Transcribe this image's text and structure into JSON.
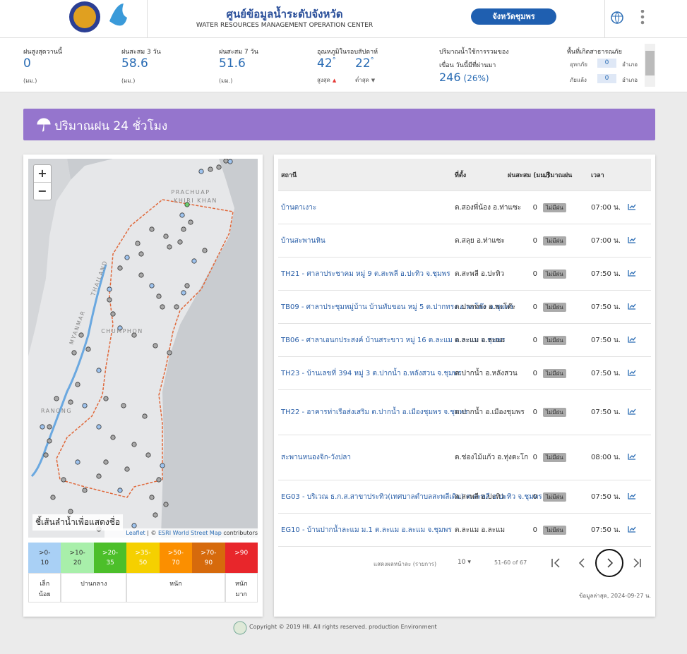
{
  "header": {
    "title_th": "ศูนย์ข้อมูลน้ำระดับจังหวัด",
    "title_en": "WATER RESOURCES MANAGEMENT OPERATION CENTER",
    "province_button": "จังหวัดชุมพร"
  },
  "stats": {
    "rain_max_yesterday": {
      "label": "ฝนสูงสุดวานนี้",
      "value": 0,
      "unit": "(มม.)"
    },
    "rain_3day": {
      "label": "ฝนสะสม 3 วัน",
      "value": 58.6,
      "unit": "(มม.)"
    },
    "rain_7day": {
      "label": "ฝนสะสม 7 วัน",
      "value": 51.6,
      "unit": "(มม.)"
    },
    "temperature": {
      "label": "อุณหภูมิในรอบสัปดาห์",
      "max": 42,
      "max_label": "สูงสุด",
      "min": 22,
      "min_label": "ต่ำสุด",
      "degree": "°"
    },
    "dam": {
      "label_1": "ปริมาณน้ำใช้การรวมของ",
      "label_2": "เขื่อน วันนี้มีที่ผ่านมา",
      "value": 246,
      "percent": "(26%)"
    },
    "disaster": {
      "label": "พื้นที่เกิดสาธารณภัย",
      "rows": [
        {
          "name": "อุทกภัย",
          "count": 0,
          "unit": "อำเภอ"
        },
        {
          "name": "ภัยแล้ง",
          "count": 0,
          "unit": "อำเภอ"
        }
      ]
    }
  },
  "banner": {
    "title": "ปริมาณฝน 24 ชั่วโมง"
  },
  "map": {
    "zoom_in": "+",
    "zoom_out": "−",
    "labels": [
      "PRACHUAP",
      "KHIRI KHAN",
      "THAILAND",
      "MYANMAR",
      "CHUMPHON",
      "RANONG"
    ],
    "hint": "ชี้เส้นลำน้ำเพื่อแสดงชื่อ",
    "attribution": {
      "leaflet": "Leaflet",
      "sep": "| ©",
      "esri": "ESRI World Street Map",
      "rest": "contributors"
    }
  },
  "legend": {
    "bins": [
      {
        "label": ">0-10",
        "color": "#a9d0f5"
      },
      {
        "label": ">10-20",
        "color": "#a8efaa"
      },
      {
        "label": ">20-35",
        "color": "#4cbf2a"
      },
      {
        "label": ">35-50",
        "color": "#f5d000"
      },
      {
        "label": ">50-70",
        "color": "#fb8f00"
      },
      {
        "label": ">70-90",
        "color": "#d66a0c"
      },
      {
        "label": ">90",
        "color": "#e8262b"
      }
    ],
    "levels": [
      "เล็กน้อย",
      "ปานกลาง",
      "หนัก",
      "หนักมาก"
    ]
  },
  "table": {
    "columns": [
      "สถานี",
      "ที่ตั้ง",
      "ฝนสะสม (มม.)",
      "ปริมาณฝน",
      "เวลา"
    ],
    "rows": [
      [
        "บ้านตาเงาะ",
        "ต.สองพี่น้อง อ.ท่าแซะ",
        0,
        "ไม่มีฝน",
        "07:00 น."
      ],
      [
        "บ้านสะพานหิน",
        "ต.สลุย อ.ท่าแซะ",
        0,
        "ไม่มีฝน",
        "07:00 น."
      ],
      [
        "TH21 - ศาลาประชาคม หมู่ 9 ต.สะพลี อ.ปะทิว จ.ชุมพร",
        "ต.สะพลี อ.ปะทิว",
        0,
        "ไม่มีฝน",
        "07:50 น."
      ],
      [
        "TB09 - ศาลาประชุมหมู่บ้าน บ้านทับขอน หมู่ 5 ต.ปากทรง อ.พะโต๊ะ จ.ชุมพร",
        "ต.ปากทรง อ.พะโต๊ะ",
        0,
        "ไม่มีฝน",
        "07:50 น."
      ],
      [
        "TB06 - ศาลาเอนกประสงค์ บ้านสระขาว หมู่ 16 ต.ละแม อ.ละแม จ.ชุมพร",
        "ต.ละแม อ.ละแม",
        0,
        "ไม่มีฝน",
        "07:50 น."
      ],
      [
        "TH23 - บ้านเลขที่ 394 หมู่ 3 ต.ปากน้ำ อ.หลังสวน จ.ชุมพร",
        "ต.ปากน้ำ อ.หลังสวน",
        0,
        "ไม่มีฝน",
        "07:50 น."
      ],
      [
        "TH22 - อาคารท่าเรือส่งเสริม ต.ปากน้ำ อ.เมืองชุมพร จ.ชุมพร",
        "ต.ปากน้ำ อ.เมืองชุมพร",
        0,
        "ไม่มีฝน",
        "07:50 น."
      ],
      [
        "สะพานหนองจิก-วังปลา",
        "ต.ช่องไม้แก้ว อ.ทุ่งตะโก",
        0,
        "ไม่มีฝน",
        "08:00 น."
      ],
      [
        "EG03 - บริเวณ ธ.ก.ส.สาขาประทิว(เทศบาลตำบลสะพลีเดิม) ต.สะพลี อ.ปะทิว จ.ชุมพร",
        "ต.สะพลี อ.ปะทิว",
        0,
        "ไม่มีฝน",
        "07:50 น."
      ],
      [
        "EG10 - บ้านปากน้ำละแม ม.1 ต.ละแม อ.ละแม จ.ชุมพร",
        "ต.ละแม อ.ละแม",
        0,
        "ไม่มีฝน",
        "07:50 น."
      ]
    ]
  },
  "pagination": {
    "per_page_label": "แสดงผลหน้าละ (รายการ)",
    "per_page": 10,
    "range": "51-60 of 67"
  },
  "last_update": "ข้อมูลล่าสุด, 2024-09-27 น.",
  "footer": "Copyright © 2019 HII. All rights reserved. production Environment"
}
